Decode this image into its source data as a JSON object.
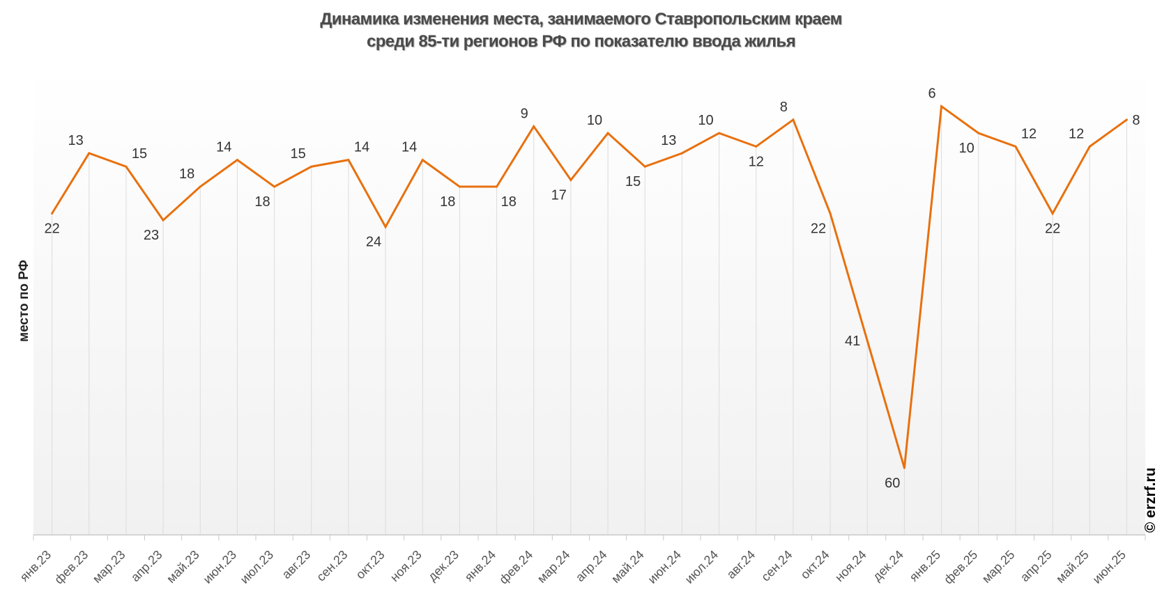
{
  "chart_data": {
    "type": "line",
    "title": [
      "Динамика изменения места, занимаемого Ставропольским краем",
      "среди 85-ти регионов РФ по показателю ввода жилья"
    ],
    "ylabel": "место по РФ",
    "xlabel": "",
    "ylim": [
      0,
      70
    ],
    "y_inverted": true,
    "grid": "vertical",
    "legend": "none",
    "line_color": "#e8700e",
    "categories": [
      "янв.23",
      "фев.23",
      "мар.23",
      "апр.23",
      "май.23",
      "июн.23",
      "июл.23",
      "авг.23",
      "сен.23",
      "окт.23",
      "ноя.23",
      "дек.23",
      "янв.24",
      "фев.24",
      "мар.24",
      "апр.24",
      "май.24",
      "июн.24",
      "июл.24",
      "авг.24",
      "сен.24",
      "окт.24",
      "ноя.24",
      "дек.24",
      "янв.25",
      "фев.25",
      "мар.25",
      "апр.25",
      "май.25",
      "июн.25"
    ],
    "series": [
      {
        "name": "место по РФ",
        "values": [
          22,
          13,
          15,
          23,
          18,
          14,
          18,
          15,
          14,
          24,
          14,
          18,
          18,
          9,
          17,
          10,
          15,
          13,
          10,
          12,
          8,
          22,
          41,
          60,
          6,
          10,
          12,
          22,
          12,
          8
        ]
      }
    ],
    "watermark": "© erzrf.ru"
  }
}
